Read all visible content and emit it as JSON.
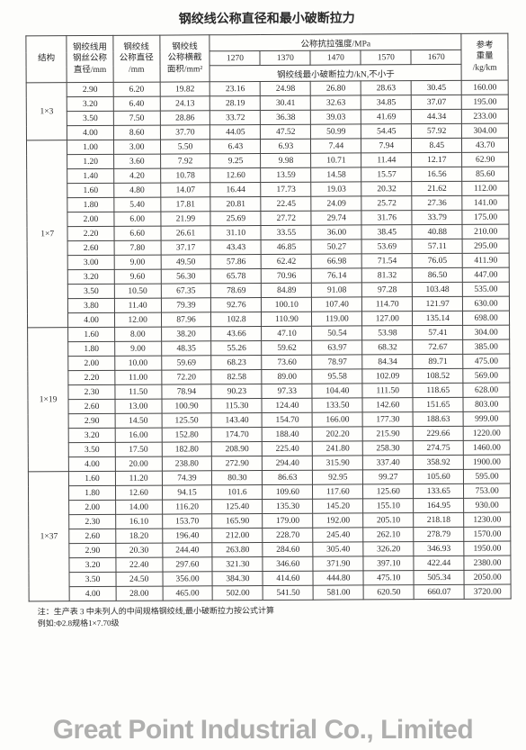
{
  "title": "钢绞线公称直径和最小破断拉力",
  "headers": {
    "c0": "结构",
    "c1_l1": "钢绞线用",
    "c1_l2": "钢丝公称",
    "c1_l3": "直径/mm",
    "c2_l1": "钢绞线",
    "c2_l2": "公称直径",
    "c2_l3": "/mm",
    "c3_l1": "钢绞线",
    "c3_l2": "公称横截",
    "c3_l3": "面积/mm²",
    "c4": "公称抗拉强度/MPa",
    "c9_l1": "参考",
    "c9_l2": "重量",
    "c9_l3": "/kg/km",
    "g1": "1270",
    "g2": "1370",
    "g3": "1470",
    "g4": "1570",
    "g5": "1670",
    "sub": "钢绞线最小破断拉力/kN,不小于"
  },
  "groups": [
    {
      "label": "1×3",
      "rows": [
        [
          "2.90",
          "6.20",
          "19.82",
          "23.16",
          "24.98",
          "26.80",
          "28.63",
          "30.45",
          "160.00"
        ],
        [
          "3.20",
          "6.40",
          "24.13",
          "28.19",
          "30.41",
          "32.63",
          "34.85",
          "37.07",
          "195.00"
        ],
        [
          "3.50",
          "7.50",
          "28.86",
          "33.72",
          "36.38",
          "39.03",
          "41.69",
          "44.34",
          "233.00"
        ],
        [
          "4.00",
          "8.60",
          "37.70",
          "44.05",
          "47.52",
          "50.99",
          "54.45",
          "57.92",
          "304.00"
        ]
      ]
    },
    {
      "label": "1×7",
      "rows": [
        [
          "1.00",
          "3.00",
          "5.50",
          "6.43",
          "6.93",
          "7.44",
          "7.94",
          "8.45",
          "43.70"
        ],
        [
          "1.20",
          "3.60",
          "7.92",
          "9.25",
          "9.98",
          "10.71",
          "11.44",
          "12.17",
          "62.90"
        ],
        [
          "1.40",
          "4.20",
          "10.78",
          "12.60",
          "13.59",
          "14.58",
          "15.57",
          "16.56",
          "85.60"
        ],
        [
          "1.60",
          "4.80",
          "14.07",
          "16.44",
          "17.73",
          "19.03",
          "20.32",
          "21.62",
          "112.00"
        ],
        [
          "1.80",
          "5.40",
          "17.81",
          "20.81",
          "22.45",
          "24.09",
          "25.72",
          "27.36",
          "141.00"
        ],
        [
          "2.00",
          "6.00",
          "21.99",
          "25.69",
          "27.72",
          "29.74",
          "31.76",
          "33.79",
          "175.00"
        ],
        [
          "2.20",
          "6.60",
          "26.61",
          "31.10",
          "33.55",
          "36.00",
          "38.45",
          "40.88",
          "210.00"
        ],
        [
          "2.60",
          "7.80",
          "37.17",
          "43.43",
          "46.85",
          "50.27",
          "53.69",
          "57.11",
          "295.00"
        ],
        [
          "3.00",
          "9.00",
          "49.50",
          "57.86",
          "62.42",
          "66.98",
          "71.54",
          "76.05",
          "411.90"
        ],
        [
          "3.20",
          "9.60",
          "56.30",
          "65.78",
          "70.96",
          "76.14",
          "81.32",
          "86.50",
          "447.00"
        ],
        [
          "3.50",
          "10.50",
          "67.35",
          "78.69",
          "84.89",
          "91.08",
          "97.28",
          "103.48",
          "535.00"
        ],
        [
          "3.80",
          "11.40",
          "79.39",
          "92.76",
          "100.10",
          "107.40",
          "114.70",
          "121.97",
          "630.00"
        ],
        [
          "4.00",
          "12.00",
          "87.96",
          "102.8",
          "110.90",
          "119.00",
          "127.00",
          "135.14",
          "698.00"
        ]
      ]
    },
    {
      "label": "1×19",
      "rows": [
        [
          "1.60",
          "8.00",
          "38.20",
          "43.66",
          "47.10",
          "50.54",
          "53.98",
          "57.41",
          "304.00"
        ],
        [
          "1.80",
          "9.00",
          "48.35",
          "55.26",
          "59.62",
          "63.97",
          "68.32",
          "72.67",
          "385.00"
        ],
        [
          "2.00",
          "10.00",
          "59.69",
          "68.23",
          "73.60",
          "78.97",
          "84.34",
          "89.71",
          "475.00"
        ],
        [
          "2.20",
          "11.00",
          "72.20",
          "82.58",
          "89.00",
          "95.58",
          "102.09",
          "108.52",
          "569.00"
        ],
        [
          "2.30",
          "11.50",
          "78.94",
          "90.23",
          "97.33",
          "104.40",
          "111.50",
          "118.65",
          "628.00"
        ],
        [
          "2.60",
          "13.00",
          "100.90",
          "115.30",
          "124.40",
          "133.50",
          "142.60",
          "151.65",
          "803.00"
        ],
        [
          "2.90",
          "14.50",
          "125.50",
          "143.40",
          "154.70",
          "166.00",
          "177.30",
          "188.63",
          "999.00"
        ],
        [
          "3.20",
          "16.00",
          "152.80",
          "174.70",
          "188.40",
          "202.20",
          "215.90",
          "229.66",
          "1220.00"
        ],
        [
          "3.50",
          "17.50",
          "182.80",
          "208.90",
          "225.40",
          "241.80",
          "258.30",
          "274.75",
          "1460.00"
        ],
        [
          "4.00",
          "20.00",
          "238.80",
          "272.90",
          "294.40",
          "315.90",
          "337.40",
          "358.92",
          "1900.00"
        ]
      ]
    },
    {
      "label": "1×37",
      "rows": [
        [
          "1.60",
          "11.20",
          "74.39",
          "80.30",
          "86.63",
          "92.95",
          "99.27",
          "105.60",
          "595.00"
        ],
        [
          "1.80",
          "12.60",
          "94.15",
          "101.6",
          "109.60",
          "117.60",
          "125.60",
          "133.65",
          "753.00"
        ],
        [
          "2.00",
          "14.00",
          "116.20",
          "125.40",
          "135.30",
          "145.20",
          "155.10",
          "164.95",
          "930.00"
        ],
        [
          "2.30",
          "16.10",
          "153.70",
          "165.90",
          "179.00",
          "192.00",
          "205.10",
          "218.18",
          "1230.00"
        ],
        [
          "2.60",
          "18.20",
          "196.40",
          "212.00",
          "228.70",
          "245.40",
          "262.10",
          "278.79",
          "1570.00"
        ],
        [
          "2.90",
          "20.30",
          "244.40",
          "263.80",
          "284.60",
          "305.40",
          "326.20",
          "346.93",
          "1950.00"
        ],
        [
          "3.20",
          "22.40",
          "297.60",
          "321.30",
          "346.60",
          "371.90",
          "397.10",
          "422.44",
          "2380.00"
        ],
        [
          "3.50",
          "24.50",
          "356.00",
          "384.30",
          "414.60",
          "444.80",
          "475.10",
          "505.34",
          "2050.00"
        ],
        [
          "4.00",
          "28.00",
          "465.00",
          "502.00",
          "541.50",
          "581.00",
          "620.50",
          "660.07",
          "3720.00"
        ]
      ]
    }
  ],
  "note_l1": "注：生产表 3 中未列人的中间规格钢绞线,最小破断拉力按公式计算",
  "note_l2": "例如:Φ2.8规格1×7.70级",
  "watermark": "Great Point Industrial Co., Limited"
}
